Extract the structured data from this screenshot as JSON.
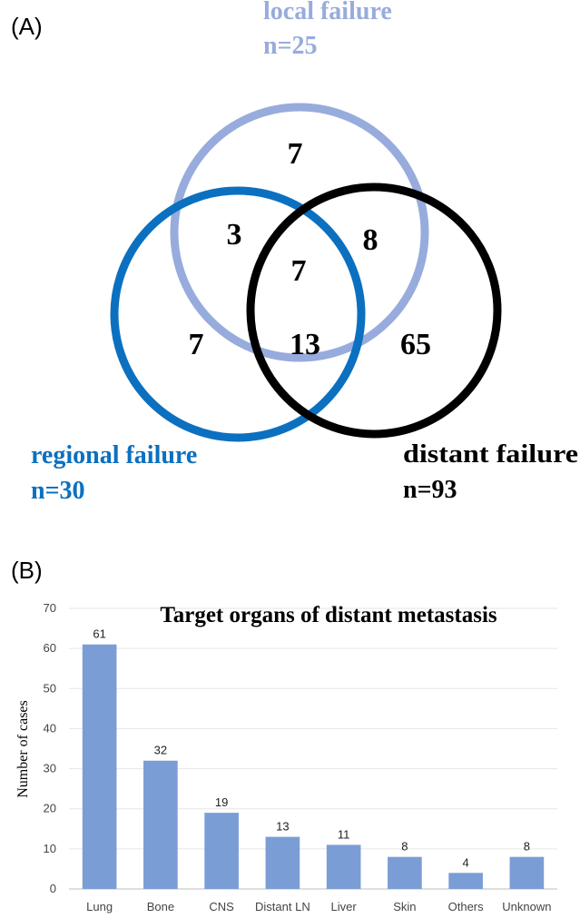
{
  "panel_a": {
    "letter": "(A)",
    "sets": [
      {
        "label": "local failure",
        "n": "n=25",
        "color": "#97acdc"
      },
      {
        "label": "regional failure",
        "n": "n=30",
        "color": "#0b70c0"
      },
      {
        "label": "distant failure",
        "n": "n=93",
        "color": "#000000"
      }
    ],
    "regions": {
      "local_only": "7",
      "local_regional": "3",
      "local_distant": "8",
      "all_three": "7",
      "regional_only": "7",
      "regional_distant": "13",
      "distant_only": "65"
    }
  },
  "panel_b": {
    "letter": "(B)"
  },
  "chart_data": {
    "type": "bar",
    "title": "Target organs of distant metastasis",
    "xlabel": "",
    "ylabel": "Number of cases",
    "categories": [
      "Lung",
      "Bone",
      "CNS",
      "Distant LN",
      "Liver",
      "Skin",
      "Others",
      "Unknown"
    ],
    "values": [
      61,
      32,
      19,
      13,
      11,
      8,
      4,
      8
    ],
    "ylim": [
      0,
      70
    ],
    "yticks": [
      0,
      10,
      20,
      30,
      40,
      50,
      60,
      70
    ],
    "grid": true,
    "bar_color": "#7b9dd6",
    "data_labels": true
  }
}
